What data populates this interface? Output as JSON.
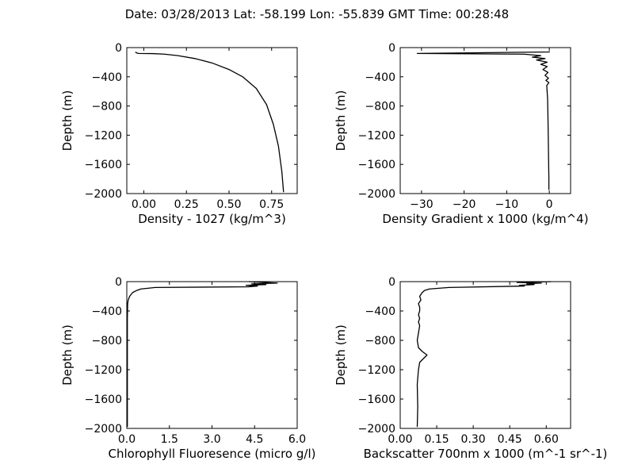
{
  "figure": {
    "title": "Date: 03/28/2013  Lat:  -58.199 Lon:  -55.839  GMT Time: 00:28:48",
    "colors": {
      "background": "#ffffff",
      "line": "#000000"
    }
  },
  "chart_data": [
    {
      "type": "line",
      "xlabel": "Density - 1027 (kg/m^3)",
      "ylabel": "Depth (m)",
      "xlim": [
        -0.1,
        0.9
      ],
      "ylim": [
        -2000,
        0
      ],
      "xticks": [
        0.0,
        0.25,
        0.5,
        0.75
      ],
      "xticklabels": [
        "0.00",
        "0.25",
        "0.50",
        "0.75"
      ],
      "yticks": [
        0,
        -400,
        -800,
        -1200,
        -1600,
        -2000
      ],
      "yticklabels": [
        "0",
        "−400",
        "−800",
        "−1200",
        "−1600",
        "−2000"
      ],
      "series": [
        {
          "x": [
            -0.05,
            -0.04,
            -0.03,
            0.05,
            0.12,
            0.2,
            0.3,
            0.4,
            0.5,
            0.58,
            0.66,
            0.72,
            0.76,
            0.79,
            0.81,
            0.82
          ],
          "y": [
            -60,
            -75,
            -80,
            -82,
            -90,
            -110,
            -150,
            -210,
            -300,
            -400,
            -560,
            -780,
            -1050,
            -1350,
            -1700,
            -1980
          ]
        }
      ]
    },
    {
      "type": "line",
      "xlabel": "Density Gradient x 1000 (kg/m^4)",
      "ylabel": "Depth (m)",
      "xlim": [
        -35,
        5
      ],
      "ylim": [
        -2000,
        0
      ],
      "xticks": [
        -30,
        -20,
        -10,
        0
      ],
      "xticklabels": [
        "−30",
        "−20",
        "−10",
        "0"
      ],
      "yticks": [
        0,
        -400,
        -800,
        -1200,
        -1600,
        -2000
      ],
      "yticklabels": [
        "0",
        "−400",
        "−800",
        "−1200",
        "−1600",
        "−2000"
      ],
      "series": [
        {
          "x": [
            0,
            0,
            -31,
            -6,
            -2,
            -4,
            -1,
            -3,
            -0.5,
            -2,
            -0.5,
            -1.5,
            -0.3,
            -1,
            -0.2,
            -0.8,
            -0.1,
            -0.6,
            -0.4,
            -0.3,
            -0.2,
            -0.1,
            -0.1
          ],
          "y": [
            -50,
            -60,
            -80,
            -90,
            -110,
            -130,
            -150,
            -170,
            -200,
            -230,
            -260,
            -300,
            -340,
            -380,
            -420,
            -450,
            -480,
            -520,
            -700,
            -1000,
            -1400,
            -1800,
            -1950
          ]
        }
      ]
    },
    {
      "type": "line",
      "xlabel": "Chlorophyll Fluoresence (micro g/l)",
      "ylabel": "Depth (m)",
      "xlim": [
        0.0,
        6.0
      ],
      "ylim": [
        -2000,
        0
      ],
      "xticks": [
        0.0,
        1.5,
        3.0,
        4.5,
        6.0
      ],
      "xticklabels": [
        "0.0",
        "1.5",
        "3.0",
        "4.5",
        "6.0"
      ],
      "yticks": [
        0,
        -400,
        -800,
        -1200,
        -1600,
        -2000
      ],
      "yticklabels": [
        "0",
        "−400",
        "−800",
        "−1200",
        "−1600",
        "−2000"
      ],
      "series": [
        {
          "x": [
            4.3,
            5.3,
            4.4,
            4.9,
            4.2,
            4.6,
            4.3,
            1.0,
            0.5,
            0.35,
            0.2,
            0.1,
            0.05,
            0.03,
            0.02,
            0.02,
            0.02,
            0.02,
            0.02
          ],
          "y": [
            0,
            -20,
            -30,
            -40,
            -50,
            -60,
            -70,
            -80,
            -100,
            -120,
            -150,
            -200,
            -250,
            -300,
            -500,
            -800,
            -1200,
            -1600,
            -1980
          ]
        }
      ]
    },
    {
      "type": "line",
      "xlabel": "Backscatter 700nm x 1000 (m^-1 sr^-1)",
      "ylabel": "Depth (m)",
      "xlim": [
        0.0,
        0.7
      ],
      "ylim": [
        -2000,
        0
      ],
      "xticks": [
        0.0,
        0.15,
        0.3,
        0.45,
        0.6
      ],
      "xticklabels": [
        "0.00",
        "0.15",
        "0.30",
        "0.45",
        "0.60"
      ],
      "yticks": [
        0,
        -400,
        -800,
        -1200,
        -1600,
        -2000
      ],
      "yticklabels": [
        "0",
        "−400",
        "−800",
        "−1200",
        "−1600",
        "−2000"
      ],
      "series": [
        {
          "x": [
            0.62,
            0.48,
            0.58,
            0.52,
            0.55,
            0.49,
            0.51,
            0.2,
            0.12,
            0.1,
            0.09,
            0.08,
            0.085,
            0.075,
            0.08,
            0.08,
            0.075,
            0.08,
            0.075,
            0.08,
            0.075,
            0.07,
            0.075,
            0.09,
            0.11,
            0.08,
            0.075,
            0.07,
            0.072,
            0.07
          ],
          "y": [
            0,
            -10,
            -20,
            -30,
            -40,
            -50,
            -60,
            -80,
            -100,
            -120,
            -150,
            -200,
            -250,
            -300,
            -350,
            -400,
            -450,
            -500,
            -550,
            -600,
            -700,
            -800,
            -900,
            -950,
            -1000,
            -1100,
            -1200,
            -1400,
            -1700,
            -1980
          ]
        }
      ]
    }
  ]
}
